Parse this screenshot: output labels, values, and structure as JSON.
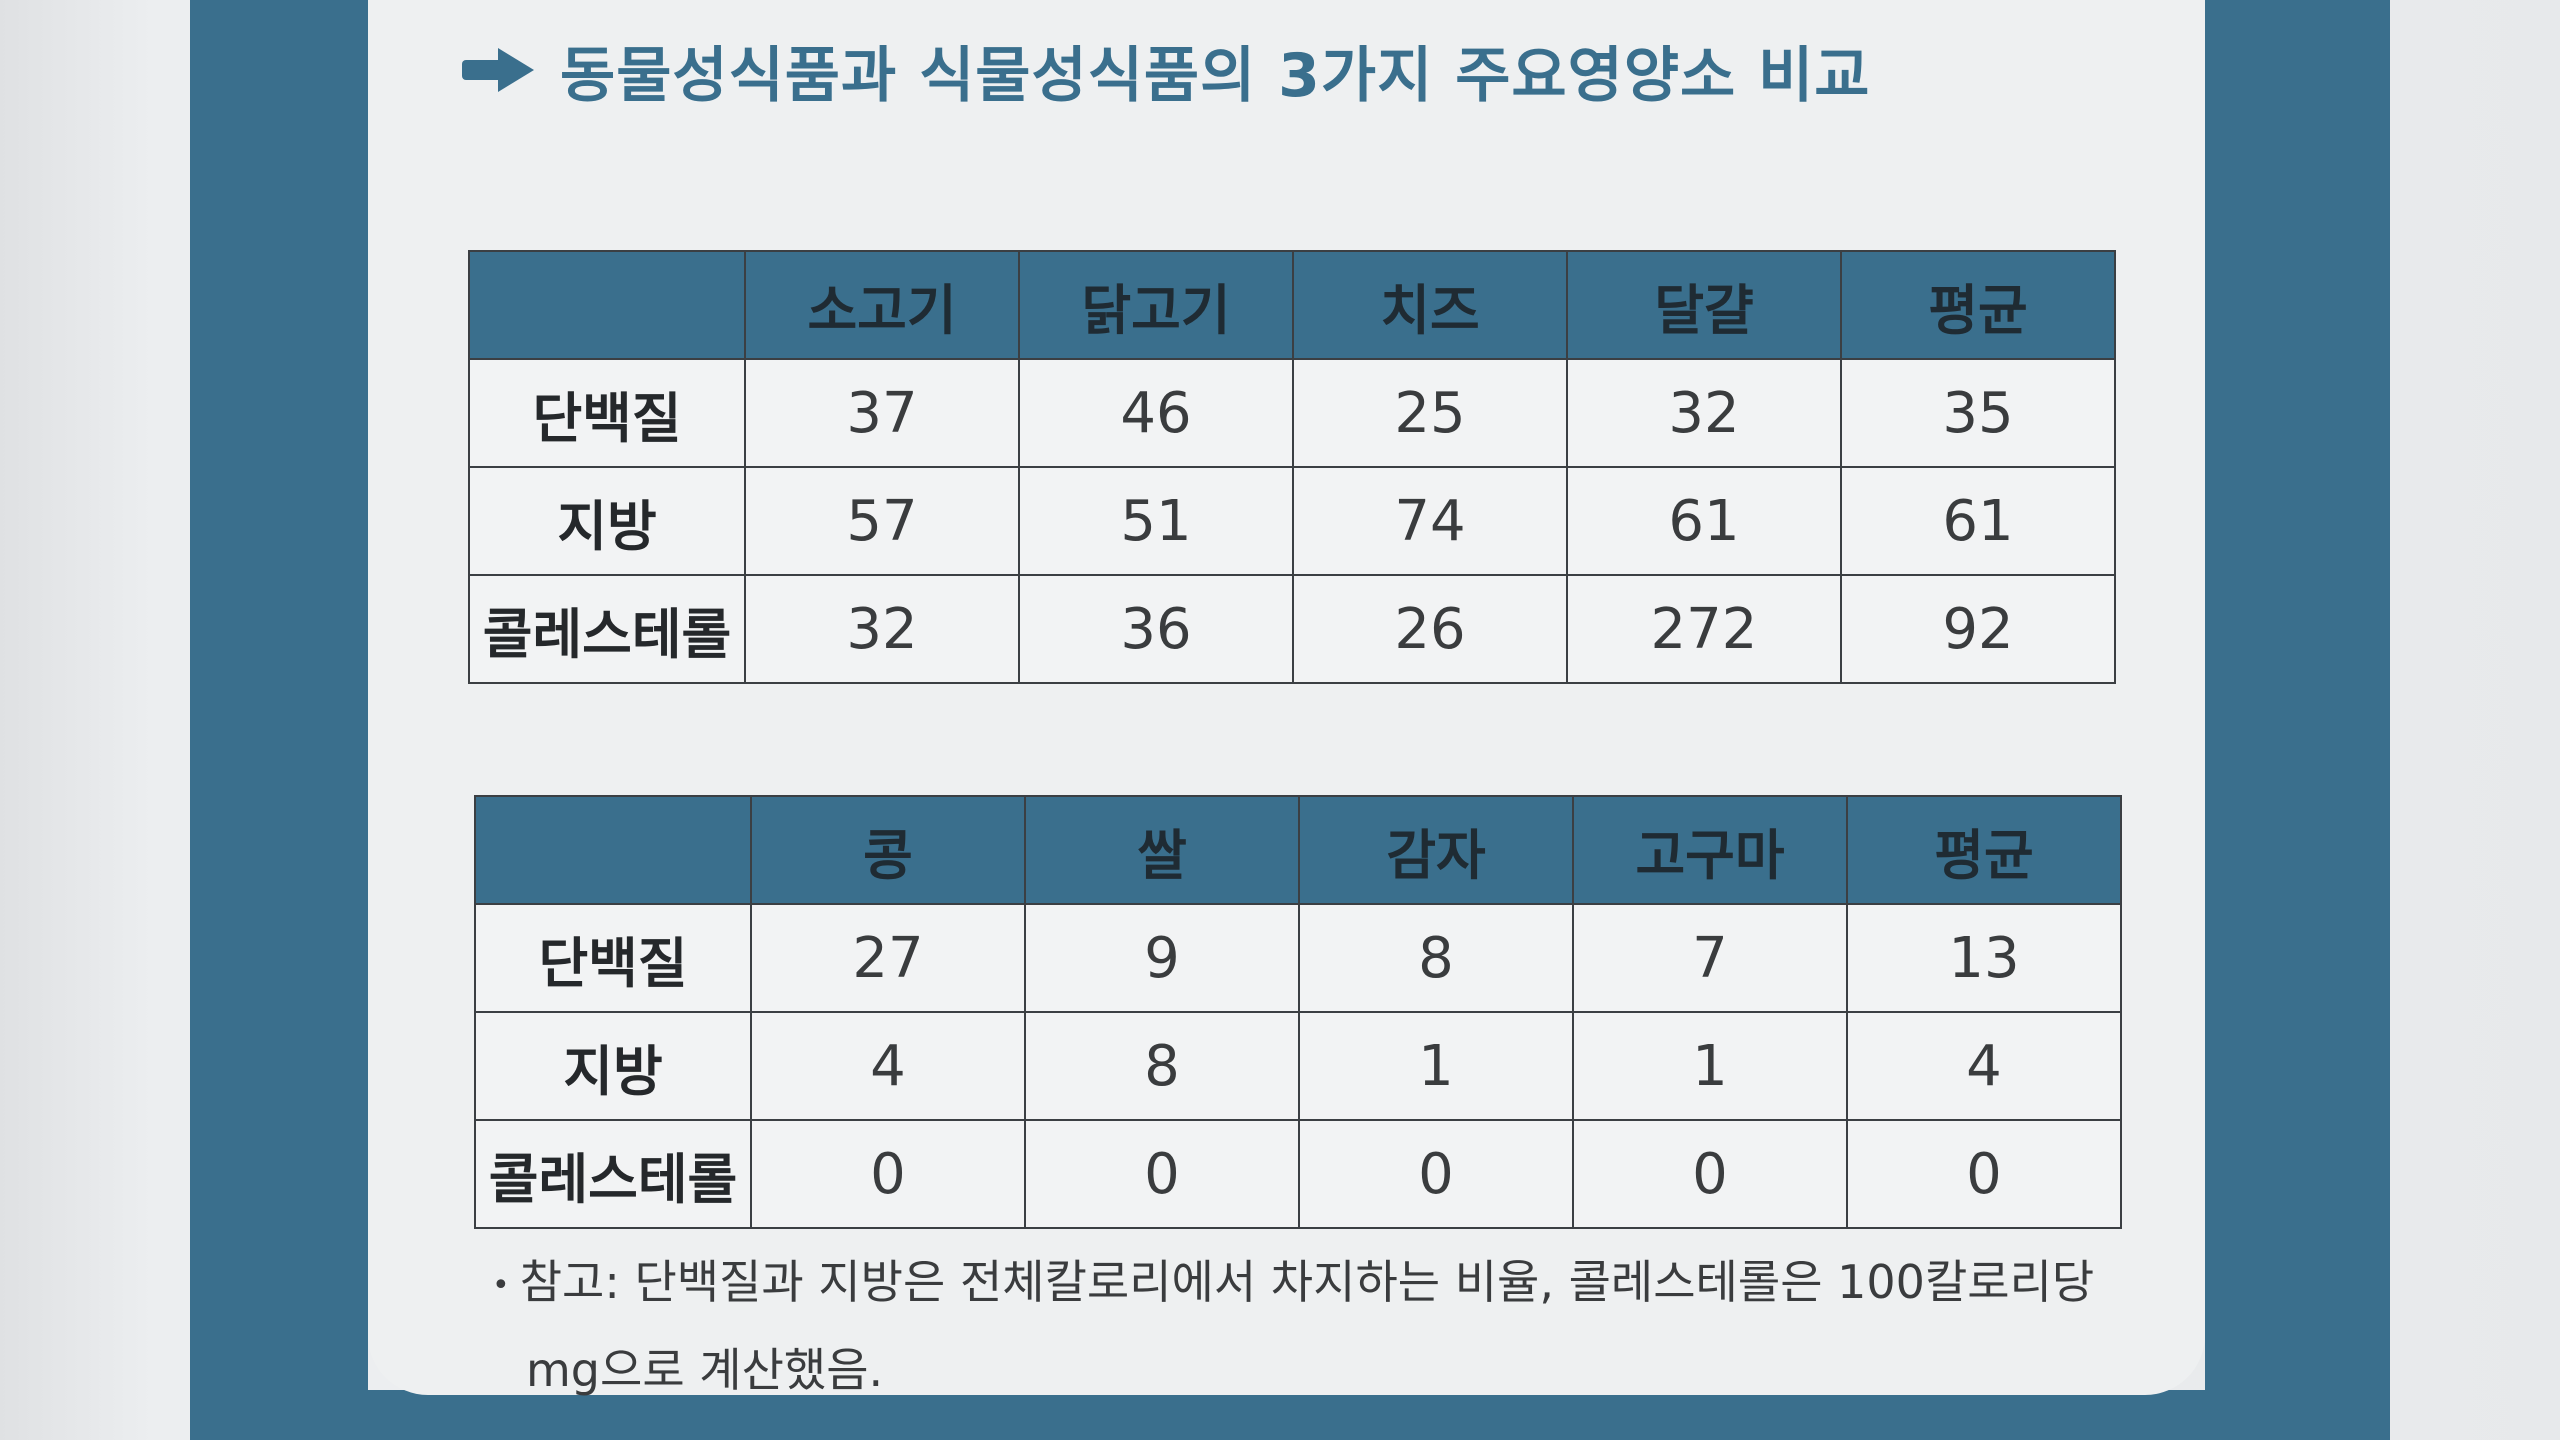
{
  "title": "동물성식품과 식물성식품의 3가지 주요영양소 비교",
  "colors": {
    "accent": "#3a6f8d",
    "text": "#3a3c3e"
  },
  "title_icon": "arrow-right-icon",
  "animal_table": {
    "columns": [
      "",
      "소고기",
      "닭고기",
      "치즈",
      "달걀",
      "평균"
    ],
    "rows": [
      {
        "label": "단백질",
        "values": [
          "37",
          "46",
          "25",
          "32",
          "35"
        ]
      },
      {
        "label": "지방",
        "values": [
          "57",
          "51",
          "74",
          "61",
          "61"
        ]
      },
      {
        "label": "콜레스테롤",
        "values": [
          "32",
          "36",
          "26",
          "272",
          "92"
        ]
      }
    ]
  },
  "plant_table": {
    "columns": [
      "",
      "콩",
      "쌀",
      "감자",
      "고구마",
      "평균"
    ],
    "rows": [
      {
        "label": "단백질",
        "values": [
          "27",
          "9",
          "8",
          "7",
          "13"
        ]
      },
      {
        "label": "지방",
        "values": [
          "4",
          "8",
          "1",
          "1",
          "4"
        ]
      },
      {
        "label": "콜레스테롤",
        "values": [
          "0",
          "0",
          "0",
          "0",
          "0"
        ]
      }
    ]
  },
  "note": {
    "bullet": "•",
    "line1": "참고: 단백질과 지방은 전체칼로리에서 차지하는 비율, 콜레스테롤은 100칼로리당",
    "line2": "mg으로 계산했음."
  }
}
